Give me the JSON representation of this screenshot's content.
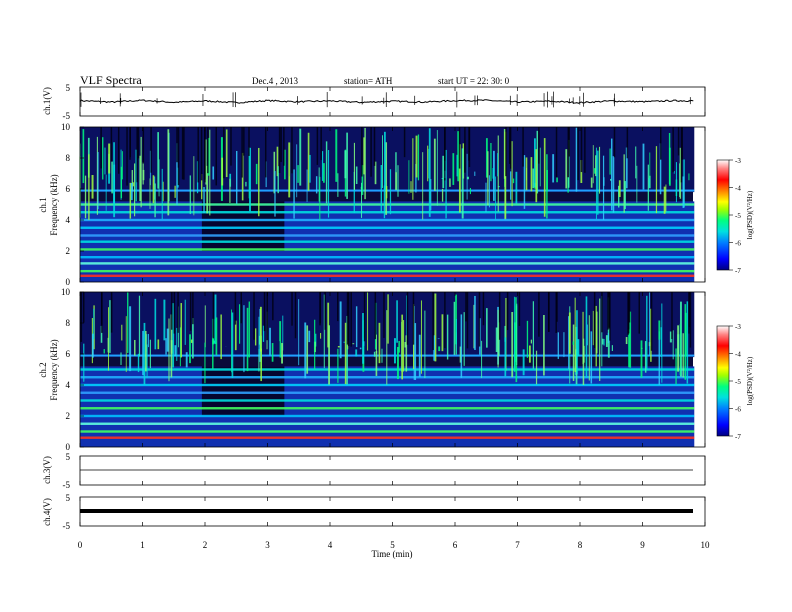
{
  "header": {
    "title": "VLF Spectra",
    "date": "Dec.4 , 2013",
    "station": "station= ATH",
    "start": "start UT = 22: 30: 0"
  },
  "x_axis": {
    "label": "Time (min)",
    "range": [
      0,
      10
    ],
    "data_end": 9.83,
    "ticks": [
      0,
      1,
      2,
      3,
      4,
      5,
      6,
      7,
      8,
      9,
      10
    ],
    "tick_labels": [
      "0",
      "1",
      "2",
      "3",
      "4",
      "5",
      "6",
      "7",
      "8",
      "9",
      "10"
    ]
  },
  "colorbar": {
    "label": "log(PSD)(V²/Hz)",
    "range": [
      -7,
      -3
    ],
    "ticks": [
      "-3",
      "-4",
      "-5",
      "-6",
      "-7"
    ],
    "colors": [
      "#000080",
      "#0000ff",
      "#0080ff",
      "#00e0e0",
      "#00ff80",
      "#a0ff00",
      "#ffff00",
      "#ff8000",
      "#ff0000",
      "#ff8080",
      "#ffffff"
    ]
  },
  "chart_data": [
    {
      "type": "line",
      "panel": "ch1-waveform",
      "ylabel": "ch.1(V)",
      "ylim": [
        -5,
        5
      ],
      "y_tick_labels": [
        "5",
        "-5"
      ],
      "description_values": {
        "baseline": 0,
        "typical_amplitude": 0.6
      },
      "x": [
        0,
        0.5,
        1,
        1.5,
        2,
        2.5,
        3,
        3.5,
        4,
        4.5,
        5,
        5.5,
        6,
        6.5,
        7,
        7.5,
        8,
        8.5,
        9,
        9.5,
        9.83
      ],
      "values": [
        0.3,
        -0.2,
        0.4,
        -0.3,
        0.2,
        -0.4,
        0.3,
        -0.1,
        0.2,
        -0.3,
        0.1,
        -0.2,
        0.3,
        0.4,
        -0.2,
        0.1,
        -0.4,
        0.2,
        -0.1,
        0.3,
        0.2
      ]
    },
    {
      "type": "heatmap",
      "panel": "ch1-spectrogram",
      "ylabel": "ch.1\nFrequency (kHz)",
      "ylim": [
        0,
        10
      ],
      "y_tick_labels": [
        "0",
        "2",
        "4",
        "6",
        "8",
        "10"
      ],
      "bands_khz": [
        0.4,
        0.7,
        1.2,
        1.6,
        2.1,
        2.6,
        3.0,
        3.5,
        4.0,
        4.5,
        5.0
      ],
      "line_khz": 5.9,
      "quiet_interval_min": [
        1.95,
        3.27
      ]
    },
    {
      "type": "heatmap",
      "panel": "ch2-spectrogram",
      "ylabel": "ch.2\nFrequency (kHz)",
      "ylim": [
        0,
        10
      ],
      "y_tick_labels": [
        "0",
        "2",
        "4",
        "6",
        "8",
        "10"
      ],
      "bands_khz": [
        0.6,
        1.0,
        1.5,
        2.0,
        2.5,
        3.0,
        3.5,
        4.0,
        4.5,
        5.0
      ],
      "line_khz": 5.9,
      "quiet_interval_min": [
        1.95,
        3.27
      ]
    },
    {
      "type": "line",
      "panel": "ch3-waveform",
      "ylabel": "ch.3(V)",
      "ylim": [
        -5,
        5
      ],
      "y_tick_labels": [
        "5",
        "-5"
      ],
      "x": [
        0,
        9.83
      ],
      "values": [
        0,
        0
      ]
    },
    {
      "type": "line",
      "panel": "ch4-waveform",
      "ylabel": "ch.4(V)",
      "ylim": [
        -5,
        5
      ],
      "y_tick_labels": [
        "5",
        "-5"
      ],
      "x": [
        0,
        9.83
      ],
      "values": [
        0,
        0
      ]
    }
  ]
}
